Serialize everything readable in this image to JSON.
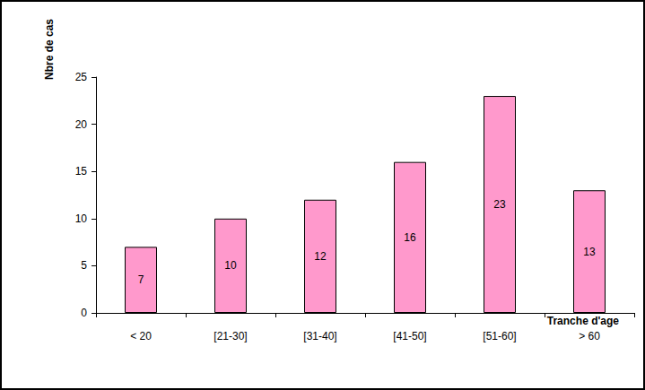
{
  "chart_data": {
    "type": "bar",
    "xlabel": "Tranche d'age",
    "ylabel": "Nbre de cas",
    "categories": [
      "< 20",
      "[21-30]",
      "[31-40]",
      "[41-50]",
      "[51-60]",
      "> 60"
    ],
    "values": [
      7,
      10,
      12,
      16,
      23,
      13
    ],
    "color": "#ff99cc",
    "ylim": [
      0,
      25
    ],
    "yticks": [
      0,
      5,
      10,
      15,
      20,
      25
    ],
    "grid": false,
    "data_labels": true
  }
}
